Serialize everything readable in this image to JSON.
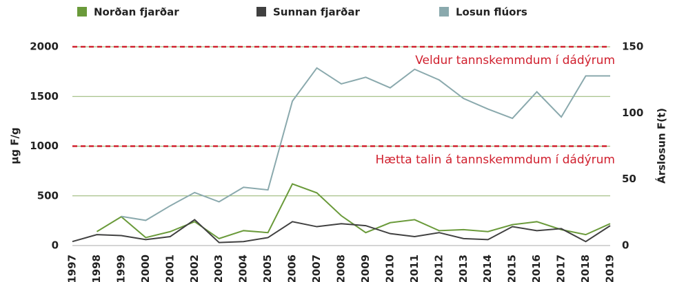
{
  "chart_data": {
    "type": "line",
    "x": [
      1997,
      1998,
      1999,
      2000,
      2001,
      2002,
      2003,
      2004,
      2005,
      2006,
      2007,
      2008,
      2009,
      2010,
      2011,
      2012,
      2013,
      2014,
      2015,
      2016,
      2017,
      2018,
      2019
    ],
    "xlim": [
      1997,
      2019
    ],
    "series": [
      {
        "name": "Norðan fjarðar",
        "color": "#6a9a3a",
        "values": [
          null,
          140,
          290,
          80,
          140,
          240,
          70,
          150,
          130,
          620,
          530,
          300,
          130,
          230,
          260,
          150,
          160,
          140,
          210,
          240,
          160,
          110,
          220
        ]
      },
      {
        "name": "Sunnan fjarðar",
        "color": "#404040",
        "values": [
          40,
          110,
          100,
          60,
          90,
          260,
          30,
          40,
          80,
          240,
          190,
          220,
          200,
          120,
          90,
          130,
          70,
          60,
          190,
          150,
          170,
          40,
          200
        ]
      },
      {
        "name": "Losun flúors",
        "color": "#8aa9ad",
        "axis": "y2",
        "values": [
          null,
          null,
          22,
          19,
          30,
          40,
          33,
          44,
          42,
          109,
          134,
          122,
          127,
          119,
          133,
          125,
          111,
          103,
          96,
          116,
          97,
          128,
          128
        ]
      }
    ],
    "ylim": [
      0,
      2000
    ],
    "yticks": [
      0,
      500,
      1000,
      1500,
      2000
    ],
    "y2lim": [
      0,
      150
    ],
    "y2ticks": [
      0,
      50,
      100,
      150
    ],
    "ylabel": "µg F/g",
    "y2label": "Árslosun F(t)",
    "grid": true,
    "grid_color": "#8fb06a",
    "thresholds": [
      {
        "value": 2000,
        "label": "Veldur tannskemmdum í dádýrum",
        "color": "#d0202e"
      },
      {
        "value": 1000,
        "label": "Hætta talin á tannskemmdum í dádýrum",
        "color": "#d0202e"
      }
    ]
  }
}
